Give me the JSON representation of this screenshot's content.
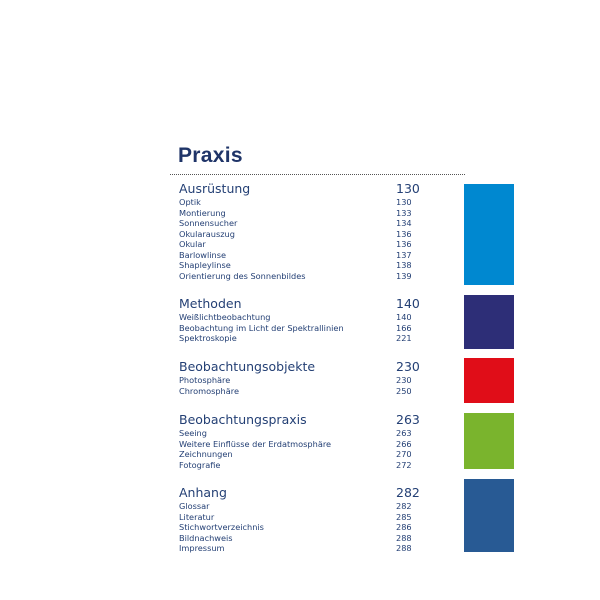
{
  "title": "Praxis",
  "sections": [
    {
      "heading": "Ausrüstung",
      "page": "130",
      "color": "#0088d0",
      "items": [
        {
          "label": "Optik",
          "page": "130"
        },
        {
          "label": "Montierung",
          "page": "133"
        },
        {
          "label": "Sonnensucher",
          "page": "134"
        },
        {
          "label": "Okularauszug",
          "page": "136"
        },
        {
          "label": "Okular",
          "page": "136"
        },
        {
          "label": "Barlowlinse",
          "page": "137"
        },
        {
          "label": "Shapleylinse",
          "page": "138"
        },
        {
          "label": "Orientierung des Sonnenbildes",
          "page": "139"
        }
      ]
    },
    {
      "heading": "Methoden",
      "page": "140",
      "color": "#2d2e77",
      "items": [
        {
          "label": "Weißlichtbeobachtung",
          "page": "140"
        },
        {
          "label": "Beobachtung im Licht der Spektrallinien",
          "page": "166"
        },
        {
          "label": "Spektroskopie",
          "page": "221"
        }
      ]
    },
    {
      "heading": "Beobachtungsobjekte",
      "page": "230",
      "color": "#e00d18",
      "items": [
        {
          "label": "Photosphäre",
          "page": "230"
        },
        {
          "label": "Chromosphäre",
          "page": "250"
        }
      ]
    },
    {
      "heading": "Beobachtungspraxis",
      "page": "263",
      "color": "#7ab42d",
      "items": [
        {
          "label": "Seeing",
          "page": "263"
        },
        {
          "label": "Weitere Einflüsse der Erdatmosphäre",
          "page": "266"
        },
        {
          "label": "Zeichnungen",
          "page": "270"
        },
        {
          "label": "Fotografie",
          "page": "272"
        }
      ]
    },
    {
      "heading": "Anhang",
      "page": "282",
      "color": "#285a94",
      "items": [
        {
          "label": "Glossar",
          "page": "282"
        },
        {
          "label": "Literatur",
          "page": "285"
        },
        {
          "label": "Stichwortverzeichnis",
          "page": "286"
        },
        {
          "label": "Bildnachweis",
          "page": "288"
        },
        {
          "label": "Impressum",
          "page": "288"
        }
      ]
    }
  ]
}
